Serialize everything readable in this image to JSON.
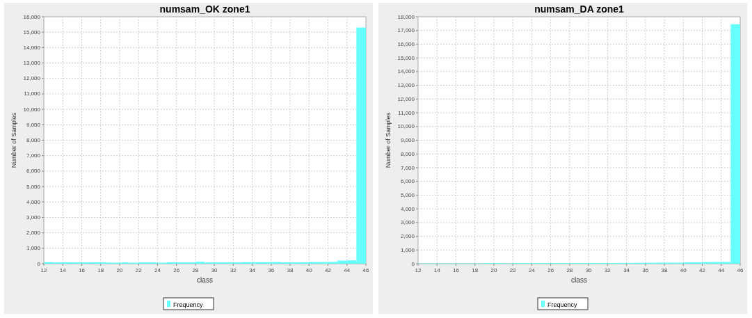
{
  "chart_data": [
    {
      "type": "histogram",
      "title": "numsam_OK zone1",
      "xlabel": "class",
      "ylabel": "Number of Samples",
      "bins": [
        12,
        13,
        14,
        15,
        16,
        17,
        18,
        19,
        20,
        21,
        22,
        23,
        24,
        25,
        26,
        27,
        28,
        29,
        30,
        31,
        32,
        33,
        34,
        35,
        36,
        37,
        38,
        39,
        40,
        41,
        42,
        43,
        44,
        45,
        46
      ],
      "series": [
        {
          "name": "Frequency",
          "color": "#66ffff",
          "values": [
            100,
            80,
            90,
            80,
            80,
            90,
            80,
            70,
            80,
            70,
            80,
            80,
            70,
            90,
            80,
            80,
            130,
            80,
            80,
            80,
            80,
            100,
            100,
            100,
            110,
            90,
            80,
            90,
            110,
            110,
            120,
            200,
            220,
            15300
          ]
        }
      ],
      "xlim": [
        12,
        46
      ],
      "xticks": [
        12,
        14,
        16,
        18,
        20,
        22,
        24,
        26,
        28,
        30,
        32,
        34,
        36,
        38,
        40,
        42,
        44,
        46
      ],
      "ylim": [
        0,
        16000
      ],
      "yticks": [
        {
          "value": 0,
          "label": "0"
        },
        {
          "value": 1000,
          "label": "1,000"
        },
        {
          "value": 2000,
          "label": "2,000"
        },
        {
          "value": 3000,
          "label": "3,000"
        },
        {
          "value": 4000,
          "label": "4,000"
        },
        {
          "value": 5000,
          "label": "5,000"
        },
        {
          "value": 6000,
          "label": "6,000"
        },
        {
          "value": 7000,
          "label": "7,000"
        },
        {
          "value": 8000,
          "label": "8,000"
        },
        {
          "value": 9000,
          "label": "9,000"
        },
        {
          "value": 10000,
          "label": "10,000"
        },
        {
          "value": 11000,
          "label": "11,000"
        },
        {
          "value": 12000,
          "label": "12,000"
        },
        {
          "value": 13000,
          "label": "13,000"
        },
        {
          "value": 14000,
          "label": "14,000"
        },
        {
          "value": 15000,
          "label": "15,000"
        },
        {
          "value": 16000,
          "label": "16,000"
        }
      ],
      "grid": true,
      "legend": "bottom"
    },
    {
      "type": "histogram",
      "title": "numsam_DA zone1",
      "xlabel": "class",
      "ylabel": "Number of Samples",
      "bins": [
        12,
        13,
        14,
        15,
        16,
        17,
        18,
        19,
        20,
        21,
        22,
        23,
        24,
        25,
        26,
        27,
        28,
        29,
        30,
        31,
        32,
        33,
        34,
        35,
        36,
        37,
        38,
        39,
        40,
        41,
        42,
        43,
        44,
        45,
        46
      ],
      "series": [
        {
          "name": "Frequency",
          "color": "#66ffff",
          "values": [
            30,
            30,
            30,
            30,
            30,
            30,
            30,
            40,
            40,
            30,
            40,
            40,
            40,
            50,
            40,
            40,
            40,
            40,
            50,
            50,
            50,
            60,
            60,
            70,
            70,
            80,
            80,
            80,
            90,
            100,
            120,
            130,
            130,
            17450
          ]
        }
      ],
      "xlim": [
        12,
        46
      ],
      "xticks": [
        12,
        14,
        16,
        18,
        20,
        22,
        24,
        26,
        28,
        30,
        32,
        34,
        36,
        38,
        40,
        42,
        44,
        46
      ],
      "ylim": [
        0,
        18000
      ],
      "yticks": [
        {
          "value": 0,
          "label": "0"
        },
        {
          "value": 1000,
          "label": "1,000"
        },
        {
          "value": 2000,
          "label": "2,000"
        },
        {
          "value": 3000,
          "label": "3,000"
        },
        {
          "value": 4000,
          "label": "4,000"
        },
        {
          "value": 5000,
          "label": "5,000"
        },
        {
          "value": 6000,
          "label": "6,000"
        },
        {
          "value": 7000,
          "label": "7,000"
        },
        {
          "value": 8000,
          "label": "8,000"
        },
        {
          "value": 9000,
          "label": "9,000"
        },
        {
          "value": 10000,
          "label": "10,000"
        },
        {
          "value": 11000,
          "label": "11,000"
        },
        {
          "value": 12000,
          "label": "12,000"
        },
        {
          "value": 13000,
          "label": "13,000"
        },
        {
          "value": 14000,
          "label": "14,000"
        },
        {
          "value": 15000,
          "label": "15,000"
        },
        {
          "value": 16000,
          "label": "16,000"
        },
        {
          "value": 17000,
          "label": "17,000"
        },
        {
          "value": 18000,
          "label": "18,000"
        }
      ],
      "grid": true,
      "legend": "bottom"
    }
  ]
}
